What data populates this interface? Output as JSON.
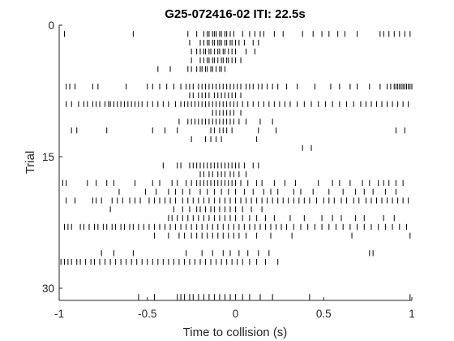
{
  "chart_data": {
    "type": "raster",
    "title": "G25-072416-02 ITI: 22.5s",
    "xlabel": "Time to collision (s)",
    "ylabel": "Trial",
    "xlim": [
      -1,
      1
    ],
    "ylim": [
      0,
      30.5
    ],
    "y_reversed": true,
    "xticks": [
      -1,
      -0.5,
      0,
      0.5,
      1
    ],
    "xtick_labels": [
      "-1",
      "-0.5",
      "0",
      "0.5",
      "1"
    ],
    "yticks": [
      0,
      15,
      30
    ],
    "ytick_labels": [
      "0",
      "15",
      "30"
    ],
    "grid": false,
    "legend": "none",
    "spike_color": "#000000",
    "trials": [
      {
        "trial": 1,
        "spikes": [
          -0.97,
          -0.58,
          -0.27,
          -0.22,
          -0.18,
          -0.16,
          -0.15,
          -0.13,
          -0.12,
          -0.11,
          -0.09,
          -0.08,
          -0.06,
          -0.05,
          -0.03,
          -0.01,
          0.04,
          0.08,
          0.11,
          0.14,
          0.16,
          0.22,
          0.27,
          0.38,
          0.44,
          0.49,
          0.53,
          0.58,
          0.62,
          0.69,
          0.82,
          0.84,
          0.87,
          0.9,
          0.93,
          0.96,
          0.99
        ]
      },
      {
        "trial": 2,
        "spikes": [
          -0.26,
          -0.2,
          -0.18,
          -0.16,
          -0.15,
          -0.13,
          -0.12,
          -0.1,
          -0.09,
          -0.08,
          -0.06,
          -0.05,
          -0.03,
          -0.02,
          0.0,
          0.02,
          0.05,
          0.1,
          0.13
        ]
      },
      {
        "trial": 3,
        "spikes": [
          -0.25,
          -0.22,
          -0.2,
          -0.18,
          -0.17,
          -0.15,
          -0.14,
          -0.12,
          -0.1,
          -0.09,
          -0.07,
          -0.06,
          -0.04,
          -0.02,
          0.0,
          0.06,
          0.11
        ]
      },
      {
        "trial": 4,
        "spikes": [
          -0.25,
          -0.2,
          -0.18,
          -0.16,
          -0.15,
          -0.13,
          -0.12,
          -0.1,
          -0.08,
          -0.07,
          -0.05,
          -0.04,
          -0.02,
          0.0,
          0.03
        ]
      },
      {
        "trial": 5,
        "spikes": [
          -0.44,
          -0.37,
          -0.27,
          -0.25,
          -0.22,
          -0.2,
          -0.19,
          -0.17,
          -0.16,
          -0.14,
          -0.13,
          -0.11,
          -0.09,
          -0.08,
          -0.06
        ]
      },
      {
        "trial": 7,
        "spikes": [
          -0.96,
          -0.94,
          -0.91,
          -0.81,
          -0.78,
          -0.62,
          -0.5,
          -0.47,
          -0.43,
          -0.39,
          -0.35,
          -0.31,
          -0.28,
          -0.26,
          -0.24,
          -0.21,
          -0.19,
          -0.17,
          -0.15,
          -0.13,
          -0.11,
          -0.09,
          -0.07,
          -0.05,
          -0.03,
          -0.01,
          0.01,
          0.03,
          0.06,
          0.08,
          0.1,
          0.13,
          0.15,
          0.18,
          0.21,
          0.24,
          0.29,
          0.35,
          0.45,
          0.54,
          0.59,
          0.65,
          0.69,
          0.76,
          0.82,
          0.86,
          0.88,
          0.9,
          0.91,
          0.92,
          0.93,
          0.94,
          0.95,
          0.96,
          0.97,
          0.98,
          0.99,
          1.0
        ]
      },
      {
        "trial": 8,
        "spikes": [
          -0.26,
          -0.24,
          -0.21,
          -0.19,
          -0.17,
          -0.15,
          -0.12,
          -0.1,
          -0.08,
          -0.06,
          -0.04,
          -0.02,
          0.0,
          0.03
        ]
      },
      {
        "trial": 9,
        "spikes": [
          -0.96,
          -0.93,
          -0.89,
          -0.86,
          -0.84,
          -0.81,
          -0.79,
          -0.77,
          -0.74,
          -0.72,
          -0.71,
          -0.69,
          -0.67,
          -0.65,
          -0.63,
          -0.61,
          -0.59,
          -0.57,
          -0.55,
          -0.53,
          -0.5,
          -0.47,
          -0.44,
          -0.41,
          -0.38,
          -0.34,
          -0.31,
          -0.29,
          -0.27,
          -0.25,
          -0.23,
          -0.21,
          -0.19,
          -0.17,
          -0.15,
          -0.13,
          -0.11,
          -0.09,
          -0.07,
          -0.05,
          -0.03,
          -0.01,
          0.01,
          0.04,
          0.07,
          0.1,
          0.13,
          0.16,
          0.19,
          0.22,
          0.25,
          0.28,
          0.31,
          0.35,
          0.39,
          0.43,
          0.47,
          0.51,
          0.55,
          0.59,
          0.63,
          0.67,
          0.71,
          0.74,
          0.77,
          0.8,
          0.83,
          0.86,
          0.89,
          0.92,
          0.95,
          0.98
        ]
      },
      {
        "trial": 10,
        "spikes": [
          -0.13,
          -0.11,
          -0.09,
          -0.07,
          -0.05,
          -0.03,
          -0.01,
          0.03
        ]
      },
      {
        "trial": 11,
        "spikes": [
          -0.32,
          -0.27,
          -0.25,
          -0.23,
          -0.21,
          -0.19,
          -0.17,
          -0.15,
          -0.13,
          -0.11,
          -0.09,
          -0.07,
          -0.05,
          -0.03,
          -0.01,
          0.02,
          0.06,
          0.14,
          0.21
        ]
      },
      {
        "trial": 12,
        "spikes": [
          -0.93,
          -0.9,
          -0.73,
          -0.47,
          -0.4,
          -0.33,
          -0.14,
          -0.12,
          -0.09,
          -0.07,
          -0.05,
          -0.02,
          0.13,
          0.23,
          0.91,
          0.96
        ]
      },
      {
        "trial": 13,
        "spikes": [
          -0.25,
          -0.17,
          -0.14,
          -0.11,
          -0.08,
          0.12
        ]
      },
      {
        "trial": 14,
        "spikes": [
          0.38,
          0.43
        ]
      },
      {
        "trial": 16,
        "spikes": [
          -0.41,
          -0.33,
          -0.31,
          -0.26,
          -0.24,
          -0.22,
          -0.2,
          -0.18,
          -0.16,
          -0.14,
          -0.12,
          -0.1,
          -0.08,
          -0.06,
          -0.04,
          -0.02,
          0.0,
          0.02,
          0.05,
          0.1,
          0.13
        ]
      },
      {
        "trial": 17,
        "spikes": [
          -0.2,
          -0.18,
          -0.15,
          -0.13,
          -0.1,
          -0.08,
          -0.06,
          -0.03,
          -0.01,
          0.02,
          0.06
        ]
      },
      {
        "trial": 18,
        "spikes": [
          -0.98,
          -0.96,
          -0.84,
          -0.79,
          -0.73,
          -0.69,
          -0.57,
          -0.47,
          -0.43,
          -0.36,
          -0.33,
          -0.28,
          -0.25,
          -0.22,
          -0.2,
          -0.18,
          -0.16,
          -0.14,
          -0.12,
          -0.1,
          -0.08,
          -0.06,
          -0.04,
          -0.02,
          0.0,
          0.03,
          0.07,
          0.12,
          0.15,
          0.22,
          0.28,
          0.34,
          0.47,
          0.55,
          0.59,
          0.65,
          0.72,
          0.76,
          0.81,
          0.84,
          0.87,
          0.91,
          0.95
        ]
      },
      {
        "trial": 19,
        "spikes": [
          -0.66,
          -0.51,
          -0.45,
          -0.38,
          -0.34,
          -0.3,
          -0.26,
          -0.2,
          -0.16,
          -0.12,
          -0.08,
          -0.04,
          0.0,
          0.05,
          0.1,
          0.16,
          0.2,
          0.24,
          0.33,
          0.37,
          0.44,
          0.53,
          0.61,
          0.68,
          0.73,
          0.78,
          0.85,
          0.91
        ]
      },
      {
        "trial": 20,
        "spikes": [
          -0.96,
          -0.91,
          -0.81,
          -0.79,
          -0.76,
          -0.7,
          -0.67,
          -0.64,
          -0.6,
          -0.57,
          -0.54,
          -0.49,
          -0.46,
          -0.43,
          -0.4,
          -0.37,
          -0.34,
          -0.3,
          -0.27,
          -0.24,
          -0.21,
          -0.18,
          -0.15,
          -0.12,
          -0.09,
          -0.06,
          -0.03,
          0.0,
          0.03,
          0.06,
          0.09,
          0.12,
          0.15,
          0.18,
          0.21,
          0.24,
          0.27,
          0.3,
          0.33,
          0.36,
          0.39,
          0.42,
          0.46,
          0.5,
          0.53,
          0.56,
          0.6,
          0.63,
          0.67,
          0.7,
          0.74,
          0.77,
          0.8,
          0.83,
          0.86,
          0.89,
          0.92,
          0.95,
          0.98
        ]
      },
      {
        "trial": 21,
        "spikes": [
          -0.71,
          -0.35,
          -0.3,
          -0.26,
          -0.22,
          -0.2,
          -0.17,
          -0.14,
          -0.12,
          -0.09,
          -0.06,
          -0.03,
          0.0,
          0.04,
          0.09,
          0.15
        ]
      },
      {
        "trial": 22,
        "spikes": [
          -0.38,
          -0.36,
          -0.33,
          -0.3,
          -0.27,
          -0.24,
          -0.21,
          -0.18,
          -0.15,
          -0.12,
          -0.09,
          -0.06,
          -0.03,
          0.0,
          0.04,
          0.08,
          0.12,
          0.17,
          0.22,
          0.31,
          0.39,
          0.49,
          0.55,
          0.6,
          0.68,
          0.73,
          0.84,
          0.9
        ]
      },
      {
        "trial": 23,
        "spikes": [
          -0.97,
          -0.95,
          -0.93,
          -0.88,
          -0.86,
          -0.83,
          -0.8,
          -0.78,
          -0.75,
          -0.73,
          -0.7,
          -0.68,
          -0.65,
          -0.63,
          -0.6,
          -0.58,
          -0.55,
          -0.52,
          -0.49,
          -0.46,
          -0.43,
          -0.4,
          -0.37,
          -0.34,
          -0.31,
          -0.28,
          -0.25,
          -0.22,
          -0.19,
          -0.16,
          -0.13,
          -0.1,
          -0.07,
          -0.04,
          -0.01,
          0.02,
          0.05,
          0.08,
          0.11,
          0.14,
          0.17,
          0.2,
          0.23,
          0.26,
          0.29,
          0.33,
          0.37,
          0.41,
          0.45,
          0.49,
          0.53,
          0.57,
          0.61,
          0.65,
          0.69,
          0.73,
          0.77,
          0.81,
          0.85,
          0.89,
          0.93,
          0.97
        ]
      },
      {
        "trial": 24,
        "spikes": [
          -0.46,
          -0.38,
          -0.32,
          -0.29,
          -0.25,
          -0.22,
          -0.19,
          -0.16,
          -0.13,
          -0.1,
          -0.07,
          -0.04,
          -0.01,
          0.02,
          0.06,
          0.12,
          0.2,
          0.32,
          0.66,
          0.99
        ]
      },
      {
        "trial": 26,
        "spikes": [
          -0.76,
          -0.69,
          -0.58,
          -0.28,
          -0.19,
          -0.13,
          -0.07,
          -0.03,
          0.02,
          0.07,
          0.13,
          0.19,
          0.76,
          0.78
        ]
      },
      {
        "trial": 27,
        "spikes": [
          -0.99,
          -0.97,
          -0.95,
          -0.93,
          -0.9,
          -0.88,
          -0.85,
          -0.82,
          -0.8,
          -0.77,
          -0.74,
          -0.71,
          -0.68,
          -0.65,
          -0.62,
          -0.59,
          -0.56,
          -0.53,
          -0.5,
          -0.47,
          -0.44,
          -0.41,
          -0.38,
          -0.35,
          -0.32,
          -0.29,
          -0.26,
          -0.23,
          -0.2,
          -0.17,
          -0.14,
          -0.11,
          -0.08,
          -0.05,
          -0.02,
          0.01,
          0.04,
          0.08,
          0.12,
          0.17,
          0.24
        ]
      },
      {
        "trial": 31,
        "spikes": [
          -0.55,
          -0.46,
          -0.33,
          -0.31,
          -0.29,
          -0.26,
          -0.24,
          -0.21,
          -0.18,
          -0.15,
          -0.12,
          -0.09,
          -0.06,
          -0.03,
          0.0,
          0.04,
          0.08,
          0.14,
          0.21,
          0.42,
          0.99
        ]
      }
    ]
  }
}
